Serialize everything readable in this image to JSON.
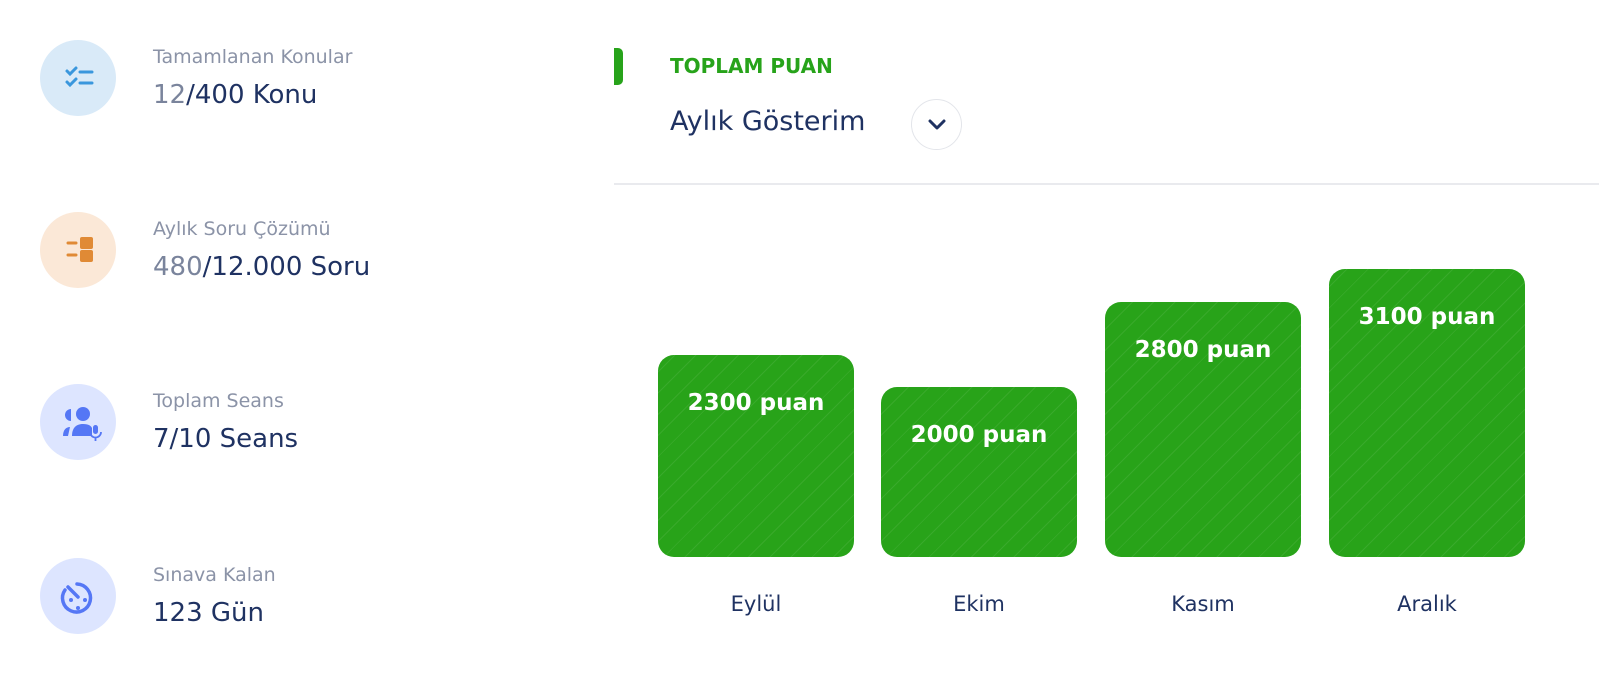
{
  "stats": [
    {
      "label": "Tamamlanan Konular",
      "current": "12",
      "total": "/400 Konu",
      "icon": "checklist-icon",
      "bg": "#d9eaf8",
      "fg": "#3a97dd"
    },
    {
      "label": "Aylık Soru Çözümü",
      "current": "480",
      "total": "/12.000 Soru",
      "icon": "question-blocks-icon",
      "bg": "#fbe8d7",
      "fg": "#e08a35"
    },
    {
      "label": "Toplam Seans",
      "current": "",
      "total": "7/10 Seans",
      "icon": "users-mic-icon",
      "bg": "#dde5ff",
      "fg": "#5577f5"
    },
    {
      "label": "Sınava Kalan",
      "current": "",
      "total": "123 Gün",
      "icon": "timer-icon",
      "bg": "#dde5ff",
      "fg": "#5577f5"
    }
  ],
  "panel": {
    "title": "TOPLAM PUAN",
    "view": "Aylık Gösterim",
    "accent": "#27a31a"
  },
  "chart_data": {
    "type": "bar",
    "categories": [
      "Eylül",
      "Ekim",
      "Kasım",
      "Aralık"
    ],
    "values": [
      2300,
      2000,
      2800,
      3100
    ],
    "data_labels": [
      "2300 puan",
      "2000 puan",
      "2800 puan",
      "3100 puan"
    ],
    "color": "#28a319"
  }
}
